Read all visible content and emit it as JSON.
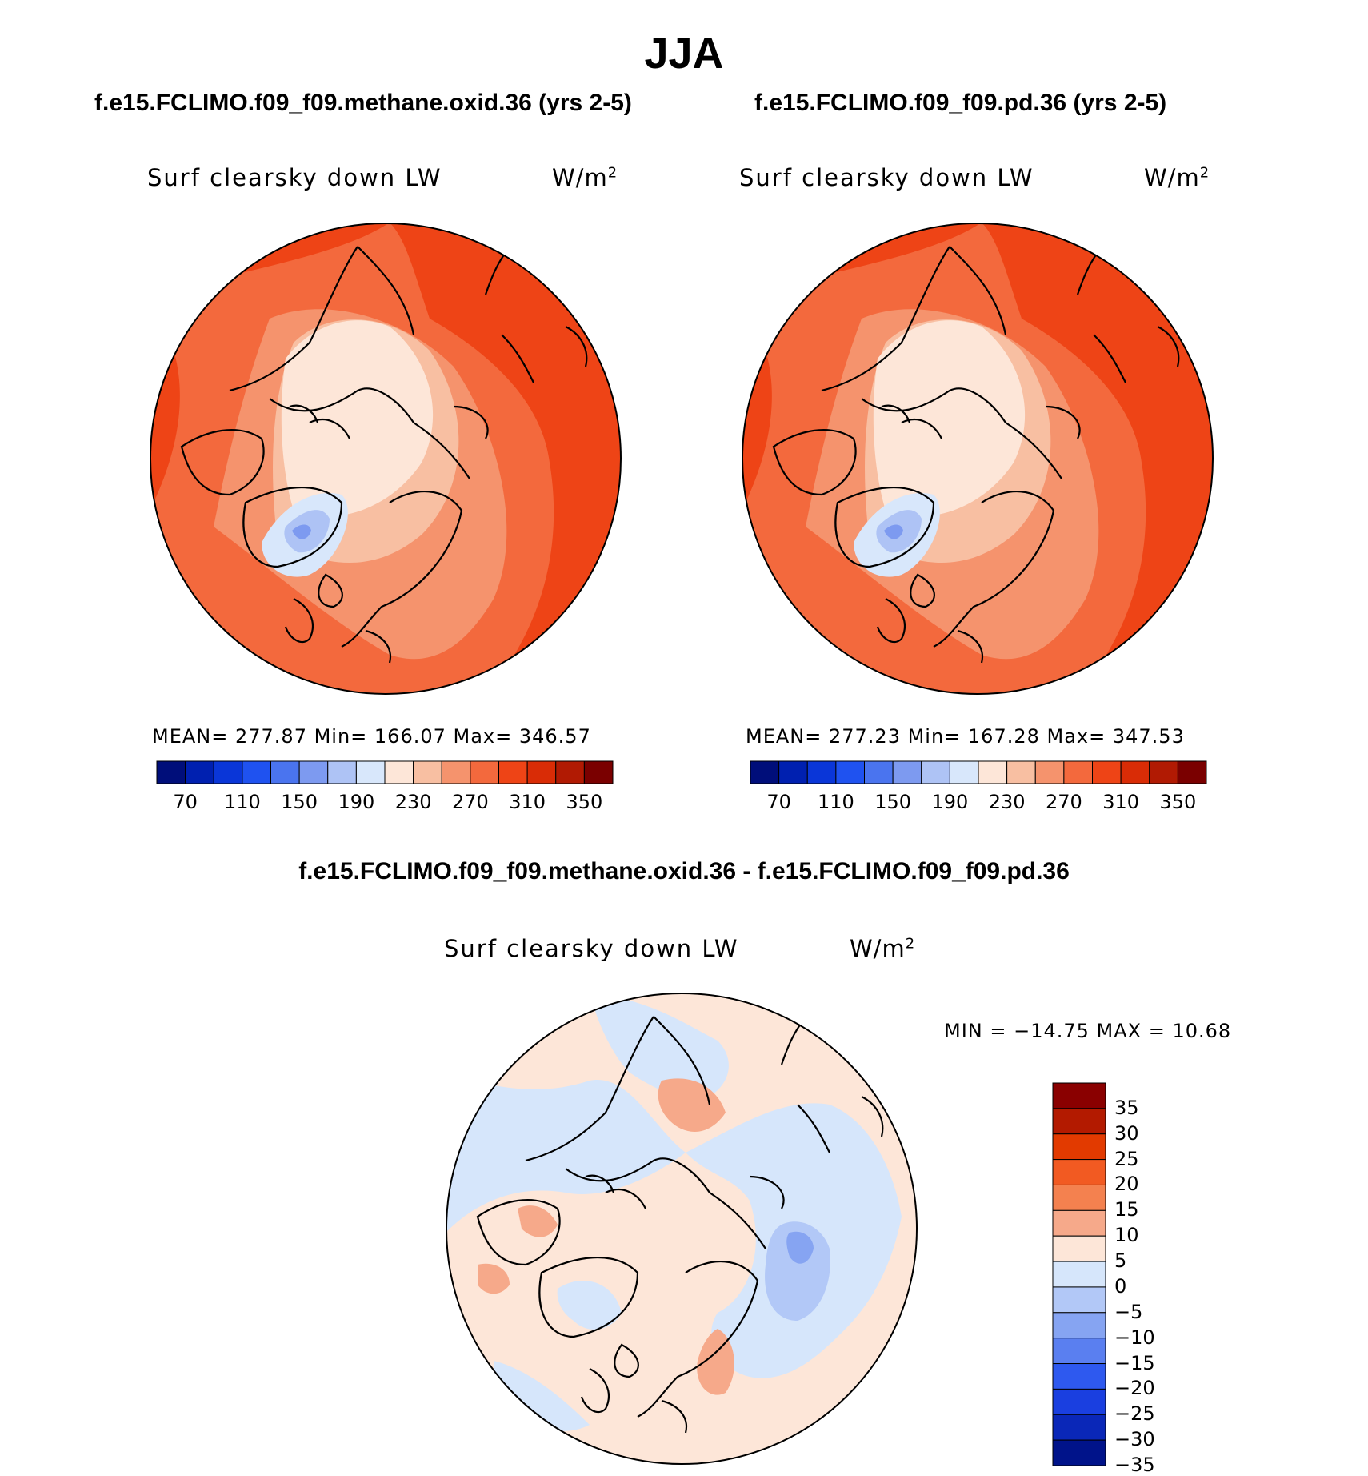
{
  "title": "JJA",
  "panels": [
    {
      "case": "f.e15.FCLIMO.f09_f09.methane.oxid.36 (yrs 2-5)",
      "variable": "Surf clearsky down LW",
      "units": "W/m",
      "units_sup": "2",
      "stats": "MEAN= 277.87   Min= 166.07   Max= 346.57"
    },
    {
      "case": "f.e15.FCLIMO.f09_f09.pd.36 (yrs 2-5)",
      "variable": "Surf clearsky down LW",
      "units": "W/m",
      "units_sup": "2",
      "stats": "MEAN= 277.23   Min= 167.28   Max= 347.53"
    }
  ],
  "diff": {
    "title": "f.e15.FCLIMO.f09_f09.methane.oxid.36 - f.e15.FCLIMO.f09_f09.pd.36",
    "variable": "Surf clearsky down LW",
    "units": "W/m",
    "units_sup": "2",
    "minmax": "MIN = −14.75 MAX =   10.68"
  },
  "colorbar_abs": {
    "colors": [
      "#000e7a",
      "#0020b0",
      "#0a36d8",
      "#1f52f0",
      "#4a74ef",
      "#7d9af0",
      "#aec3f5",
      "#d8e7fb",
      "#fde6d8",
      "#f8bfa2",
      "#f5936d",
      "#f3693d",
      "#ee4416",
      "#d92c06",
      "#b11a03",
      "#7a0000"
    ],
    "labels": [
      "70",
      "110",
      "150",
      "190",
      "230",
      "270",
      "310",
      "350"
    ]
  },
  "colorbar_diff": {
    "colors": [
      "#8a0000",
      "#b31a00",
      "#e23a00",
      "#f25a22",
      "#f4814f",
      "#f6a98a",
      "#fde6d8",
      "#d6e6fb",
      "#b2c8f7",
      "#86a4f2",
      "#5a7ff0",
      "#2e59ef",
      "#1a3fe0",
      "#0a27b8",
      "#00138a"
    ],
    "labels": [
      "35",
      "30",
      "25",
      "20",
      "15",
      "10",
      "5",
      "0",
      "−5",
      "−10",
      "−15",
      "−20",
      "−25",
      "−30",
      "−35"
    ]
  }
}
